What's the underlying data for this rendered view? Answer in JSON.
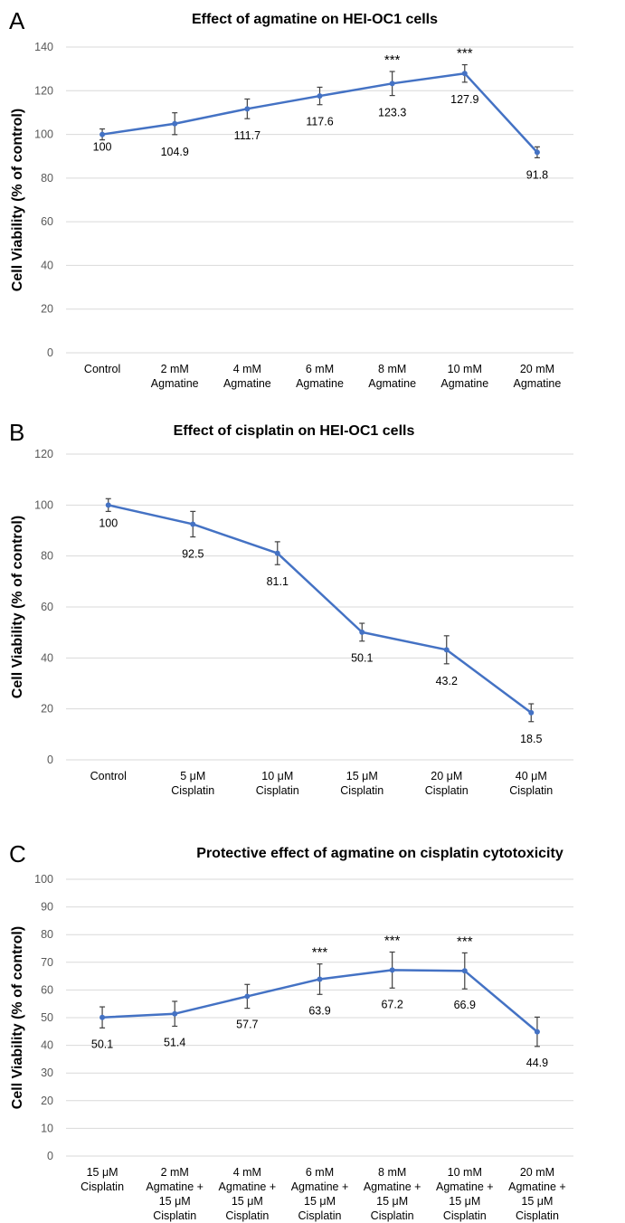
{
  "chart_data": [
    {
      "panel": "A",
      "type": "line",
      "title": "Effect of agmatine on HEI-OC1 cells",
      "ylabel": "Cell Viability (% of control)",
      "xlabel": "",
      "categories": [
        "Control",
        "2 mM\nAgmatine",
        "4 mM\nAgmatine",
        "6 mM\nAgmatine",
        "8 mM\nAgmatine",
        "10 mM\nAgmatine",
        "20 mM\nAgmatine"
      ],
      "values": [
        100,
        104.9,
        111.7,
        117.6,
        123.3,
        127.9,
        91.8
      ],
      "labels": [
        "100",
        "104.9",
        "111.7",
        "117.6",
        "123.3",
        "127.9",
        "91.8"
      ],
      "errors": [
        2.5,
        5,
        4.5,
        4,
        5.5,
        4,
        2.5
      ],
      "significance": [
        "",
        "",
        "",
        "",
        "***",
        "***",
        ""
      ],
      "ylim": [
        0,
        140
      ],
      "yticks": [
        0,
        20,
        40,
        60,
        80,
        100,
        120,
        140
      ],
      "grid": true,
      "color": "#4472c4"
    },
    {
      "panel": "B",
      "type": "line",
      "title": "Effect of cisplatin on HEI-OC1 cells",
      "ylabel": "Cell Viability (% of control)",
      "xlabel": "",
      "categories": [
        "Control",
        "5 μM\nCisplatin",
        "10 μM\nCisplatin",
        "15 μM\nCisplatin",
        "20 μM\nCisplatin",
        "40 μM\nCisplatin"
      ],
      "values": [
        100,
        92.5,
        81.1,
        50.1,
        43.2,
        18.5
      ],
      "labels": [
        "100",
        "92.5",
        "81.1",
        "50.1",
        "43.2",
        "18.5"
      ],
      "errors": [
        2.5,
        5,
        4.5,
        3.5,
        5.5,
        3.5
      ],
      "significance": [
        "",
        "",
        "",
        "",
        "",
        ""
      ],
      "ylim": [
        0,
        120
      ],
      "yticks": [
        0,
        20,
        40,
        60,
        80,
        100,
        120
      ],
      "grid": true,
      "color": "#4472c4"
    },
    {
      "panel": "C",
      "type": "line",
      "title": "Protective effect of agmatine on cisplatin cytotoxicity",
      "ylabel": "Cell Viability (% of control)",
      "xlabel": "",
      "categories": [
        "15 μM\nCisplatin",
        "2 mM\nAgmatine +\n15 μM\nCisplatin",
        "4 mM\nAgmatine +\n15 μM\nCisplatin",
        "6 mM\nAgmatine +\n15 μM\nCisplatin",
        "8 mM\nAgmatine +\n15 μM\nCisplatin",
        "10 mM\nAgmatine +\n15 μM\nCisplatin",
        "20 mM\nAgmatine +\n15 μM\nCisplatin"
      ],
      "values": [
        50.1,
        51.4,
        57.7,
        63.9,
        67.2,
        66.9,
        44.9
      ],
      "labels": [
        "50.1",
        "51.4",
        "57.7",
        "63.9",
        "67.2",
        "66.9",
        "44.9"
      ],
      "errors": [
        3.8,
        4.5,
        4.3,
        5.5,
        6.5,
        6.5,
        5.3
      ],
      "significance": [
        "",
        "",
        "",
        "***",
        "***",
        "***",
        ""
      ],
      "ylim": [
        0,
        100
      ],
      "yticks": [
        0,
        10,
        20,
        30,
        40,
        50,
        60,
        70,
        80,
        90,
        100
      ],
      "grid": true,
      "color": "#4472c4"
    }
  ]
}
